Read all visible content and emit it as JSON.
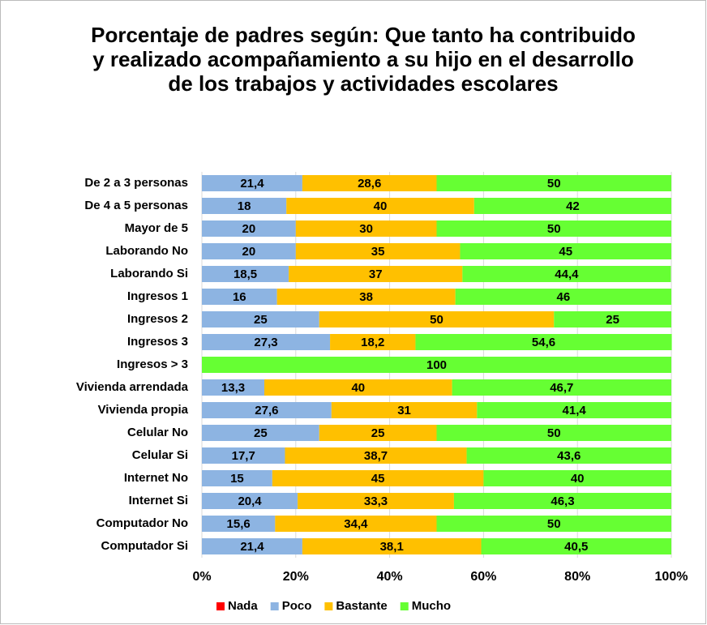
{
  "chart_data": {
    "type": "stacked_bar_horizontal_100",
    "title": "Porcentaje de padres según: Que tanto ha contribuido y realizado acompañamiento a su hijo en el desarrollo de los trabajos y actividades escolares",
    "categories": [
      "De 2 a 3 personas",
      "De 4 a 5 personas",
      "Mayor de 5",
      "Laborando No",
      "Laborando Si",
      "Ingresos 1",
      "Ingresos 2",
      "Ingresos 3",
      "Ingresos > 3",
      "Vivienda arrendada",
      "Vivienda propia",
      "Celular No",
      "Celular Si",
      "Internet No",
      "Internet Si",
      "Computador No",
      "Computador Si"
    ],
    "series": [
      {
        "name": "Nada",
        "color": "#ff0000",
        "values": [
          0,
          0,
          0,
          0,
          0,
          0,
          0,
          0,
          0,
          0,
          0,
          0,
          0,
          0,
          0,
          0,
          0
        ],
        "value_labels": [
          null,
          null,
          null,
          null,
          null,
          null,
          null,
          null,
          null,
          null,
          null,
          null,
          null,
          null,
          null,
          null,
          null
        ]
      },
      {
        "name": "Poco",
        "color": "#8db4e2",
        "values": [
          21.4,
          18,
          20,
          20,
          18.5,
          16,
          25,
          27.3,
          0,
          13.3,
          27.6,
          25,
          17.7,
          15,
          20.4,
          15.6,
          21.4
        ],
        "value_labels": [
          "21,4",
          "18",
          "20",
          "20",
          "18,5",
          "16",
          "25",
          "27,3",
          null,
          "13,3",
          "27,6",
          "25",
          "17,7",
          "15",
          "20,4",
          "15,6",
          "21,4"
        ]
      },
      {
        "name": "Bastante",
        "color": "#ffc000",
        "values": [
          28.6,
          40,
          30,
          35,
          37,
          38,
          50,
          18.2,
          0,
          40,
          31,
          25,
          38.7,
          45,
          33.3,
          34.4,
          38.1
        ],
        "value_labels": [
          "28,6",
          "40",
          "30",
          "35",
          "37",
          "38",
          "50",
          "18,2",
          null,
          "40",
          "31",
          "25",
          "38,7",
          "45",
          "33,3",
          "34,4",
          "38,1"
        ]
      },
      {
        "name": "Mucho",
        "color": "#66ff33",
        "values": [
          50,
          42,
          50,
          45,
          44.4,
          46,
          25,
          54.6,
          100,
          46.7,
          41.4,
          50,
          43.6,
          40,
          46.3,
          50,
          40.5
        ],
        "value_labels": [
          "50",
          "42",
          "50",
          "45",
          "44,4",
          "46",
          "25",
          "54,6",
          "100",
          "46,7",
          "41,4",
          "50",
          "43,6",
          "40",
          "46,3",
          "50",
          "40,5"
        ]
      }
    ],
    "xlim": [
      0,
      100
    ],
    "xticks": [
      {
        "value": 0,
        "label": "0%"
      },
      {
        "value": 20,
        "label": "20%"
      },
      {
        "value": 40,
        "label": "40%"
      },
      {
        "value": 60,
        "label": "60%"
      },
      {
        "value": 80,
        "label": "80%"
      },
      {
        "value": 100,
        "label": "100%"
      }
    ],
    "grid": true,
    "legend": "bottom"
  }
}
